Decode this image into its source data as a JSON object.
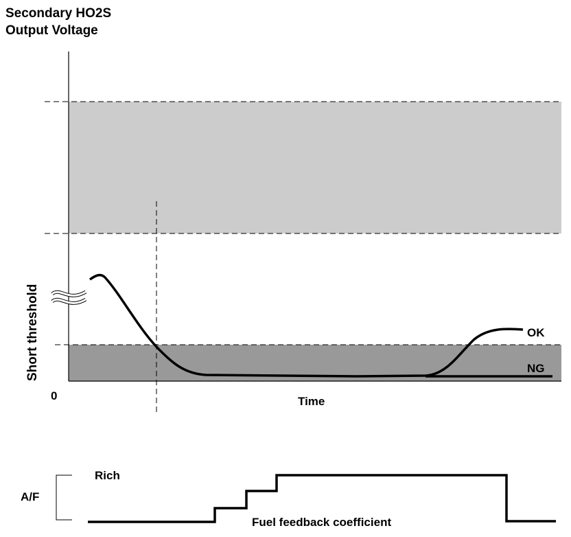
{
  "title": {
    "line1": "Secondary HO2S",
    "line2": "Output Voltage"
  },
  "y_axis_label": "Short threshold",
  "origin_label": "0",
  "x_axis_label": "Time",
  "curve_labels": {
    "ok": "OK",
    "ng": "NG"
  },
  "lower": {
    "y_label": "A/F",
    "rich_label": "Rich",
    "signal_label": "Fuel feedback coefficient"
  },
  "colors": {
    "upper_band": "#cccccc",
    "lower_band": "#999999",
    "line": "#000000"
  }
}
